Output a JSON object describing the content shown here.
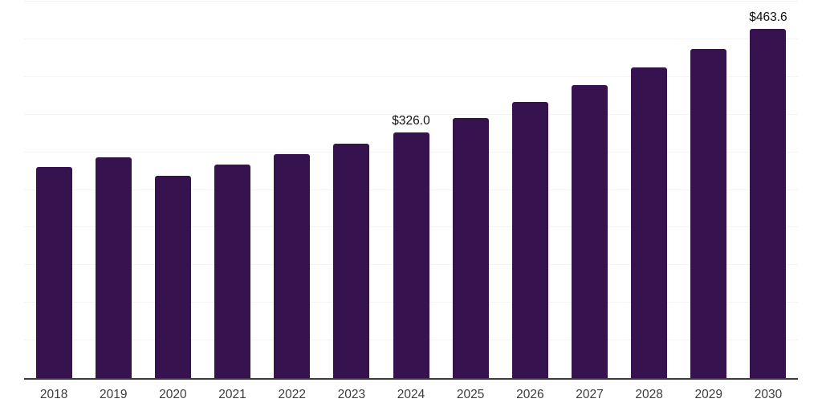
{
  "chart": {
    "background_color": "#ffffff",
    "bar_color": "#36134e",
    "axis_color": "#3b3b3b",
    "gridline_color": "#f4f4f4",
    "tick_label_color": "#3d3d3d",
    "data_label_color": "#111111"
  },
  "chart_data": {
    "type": "bar",
    "title": "",
    "xlabel": "",
    "ylabel": "",
    "categories": [
      "2018",
      "2019",
      "2020",
      "2021",
      "2022",
      "2023",
      "2024",
      "2025",
      "2026",
      "2027",
      "2028",
      "2029",
      "2030"
    ],
    "values": [
      280.4,
      293.2,
      269.2,
      284.1,
      297.2,
      311.1,
      326.0,
      345.7,
      366.6,
      388.8,
      412.3,
      437.2,
      463.6
    ],
    "data_labels": [
      {
        "category": "2024",
        "text": "$326.0"
      },
      {
        "category": "2030",
        "text": "$463.6"
      }
    ],
    "ylim": [
      0,
      500
    ],
    "gridline_step": 50,
    "grid": "horizontal",
    "y_tick_labels_visible": false,
    "legend": "none"
  }
}
